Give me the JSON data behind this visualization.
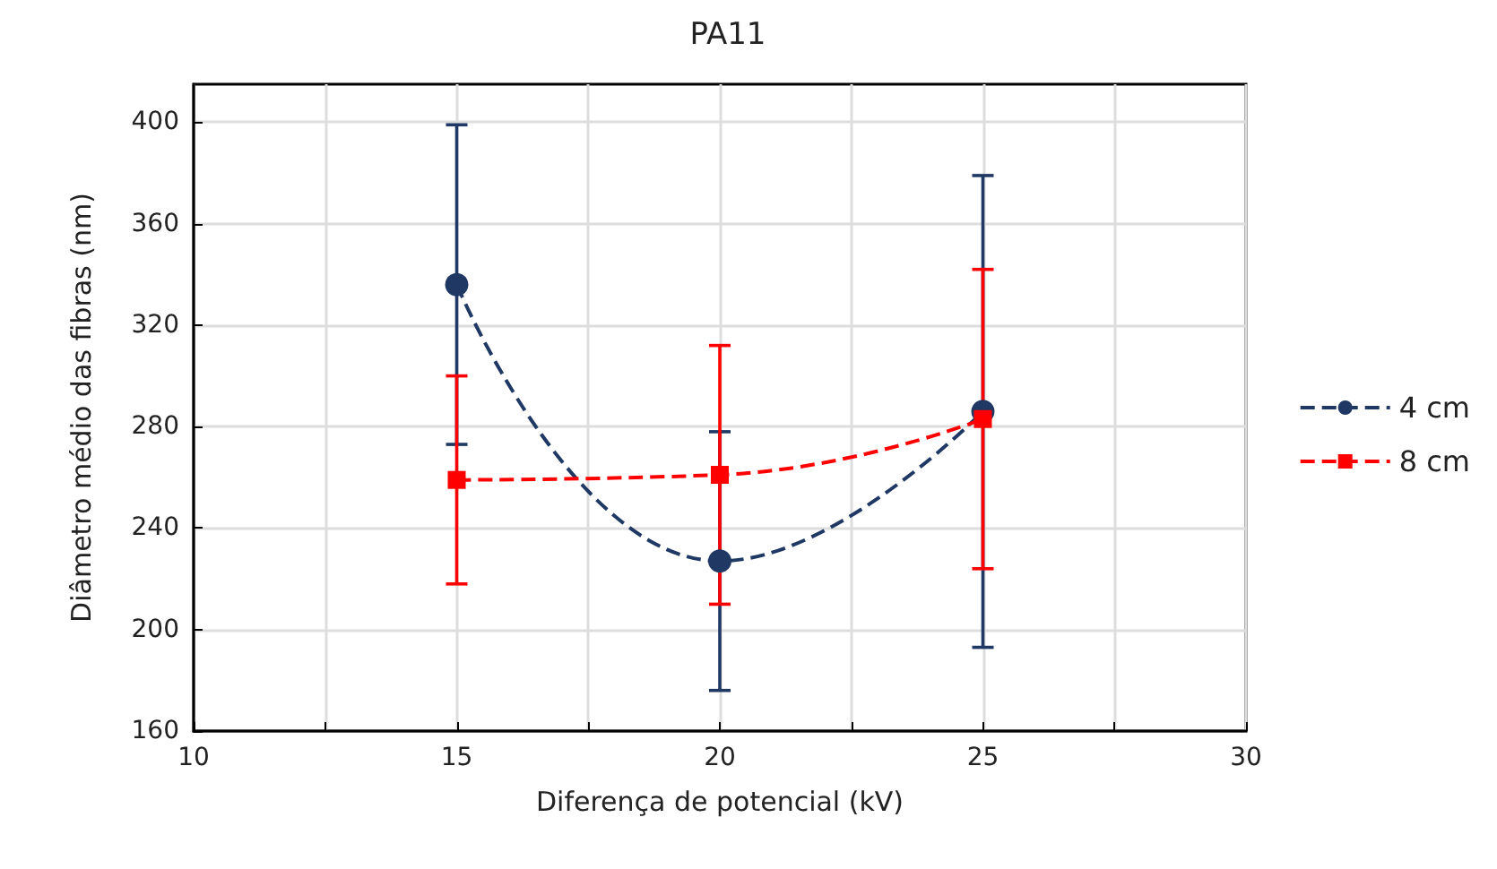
{
  "chart_data": {
    "type": "line",
    "title": "PA11",
    "xlabel": "Diferença de potencial (kV)",
    "ylabel": "Diâmetro médio das fibras (nm)",
    "x": [
      15,
      20,
      25
    ],
    "series": [
      {
        "name": "4 cm",
        "color": "#1f3864",
        "values": [
          336,
          227,
          286
        ],
        "errors": [
          63,
          51,
          93
        ],
        "marker": "circle"
      },
      {
        "name": "8 cm",
        "color": "#ff0000",
        "values": [
          259,
          261,
          283
        ],
        "errors": [
          41,
          51,
          59
        ],
        "marker": "square"
      }
    ],
    "xlim": [
      10,
      30
    ],
    "xticks": [
      10,
      {
        "value": 12.5,
        "label": null
      },
      15,
      {
        "value": 17.5,
        "label": null
      },
      20,
      {
        "value": 22.5,
        "label": null
      },
      25,
      {
        "value": 27.5,
        "label": null
      },
      30
    ],
    "ylim": [
      160,
      415
    ],
    "yticks": [
      160,
      200,
      240,
      280,
      320,
      360,
      400
    ],
    "grid": true,
    "legend": "right",
    "line_style": "dashed"
  }
}
